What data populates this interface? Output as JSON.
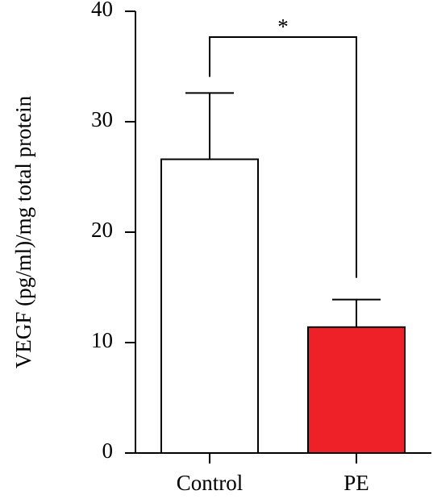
{
  "chart_data": {
    "type": "bar",
    "y_label": "VEGF (pg/ml)/mg total protein",
    "categories": [
      "Control",
      "PE"
    ],
    "values": [
      26.6,
      11.4
    ],
    "errors": [
      6.0,
      2.5
    ],
    "colors": [
      "#ffffff",
      "#ee2028"
    ],
    "ylim": [
      0,
      40
    ],
    "yticks": [
      0,
      10,
      20,
      30,
      40
    ],
    "annotation": "*"
  }
}
